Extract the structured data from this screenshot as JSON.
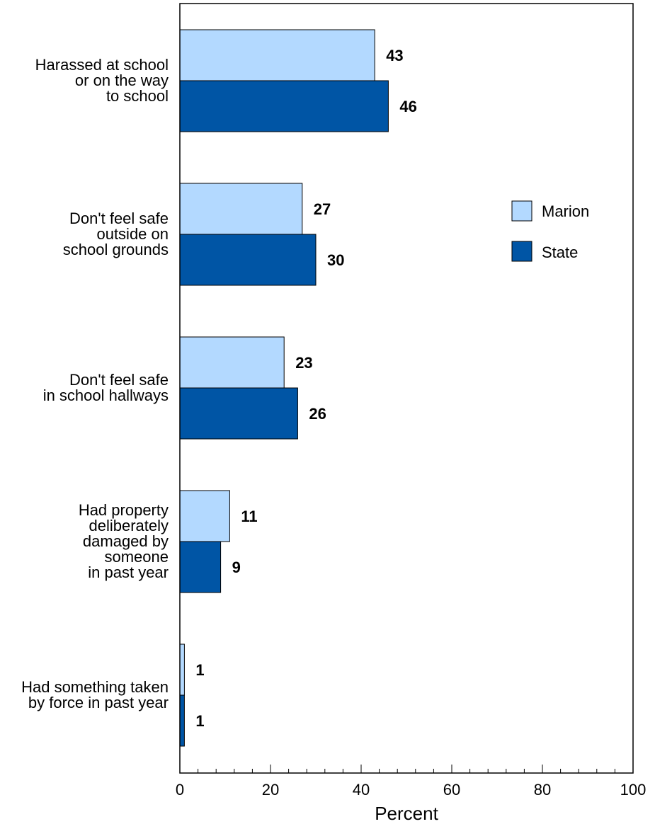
{
  "chart_data": {
    "type": "bar",
    "orientation": "horizontal",
    "categories": [
      [
        "Harassed at school",
        "or on the way",
        "to school"
      ],
      [
        "Don't feel safe",
        "outside on",
        "school grounds"
      ],
      [
        "Don't feel safe",
        "in school hallways"
      ],
      [
        "Had property",
        "deliberately",
        "damaged by",
        "someone",
        "in past year"
      ],
      [
        "Had something taken",
        "by force in past year"
      ]
    ],
    "series": [
      {
        "name": "Marion",
        "color": "#b3d9ff",
        "values": [
          43,
          27,
          23,
          11,
          1
        ]
      },
      {
        "name": "State",
        "color": "#0055a5",
        "values": [
          46,
          30,
          26,
          9,
          1
        ]
      }
    ],
    "xlabel": "Percent",
    "xlim": [
      0,
      100
    ],
    "xticks": [
      0,
      20,
      40,
      60,
      80,
      100
    ],
    "legend_position": "right",
    "grid": false
  }
}
